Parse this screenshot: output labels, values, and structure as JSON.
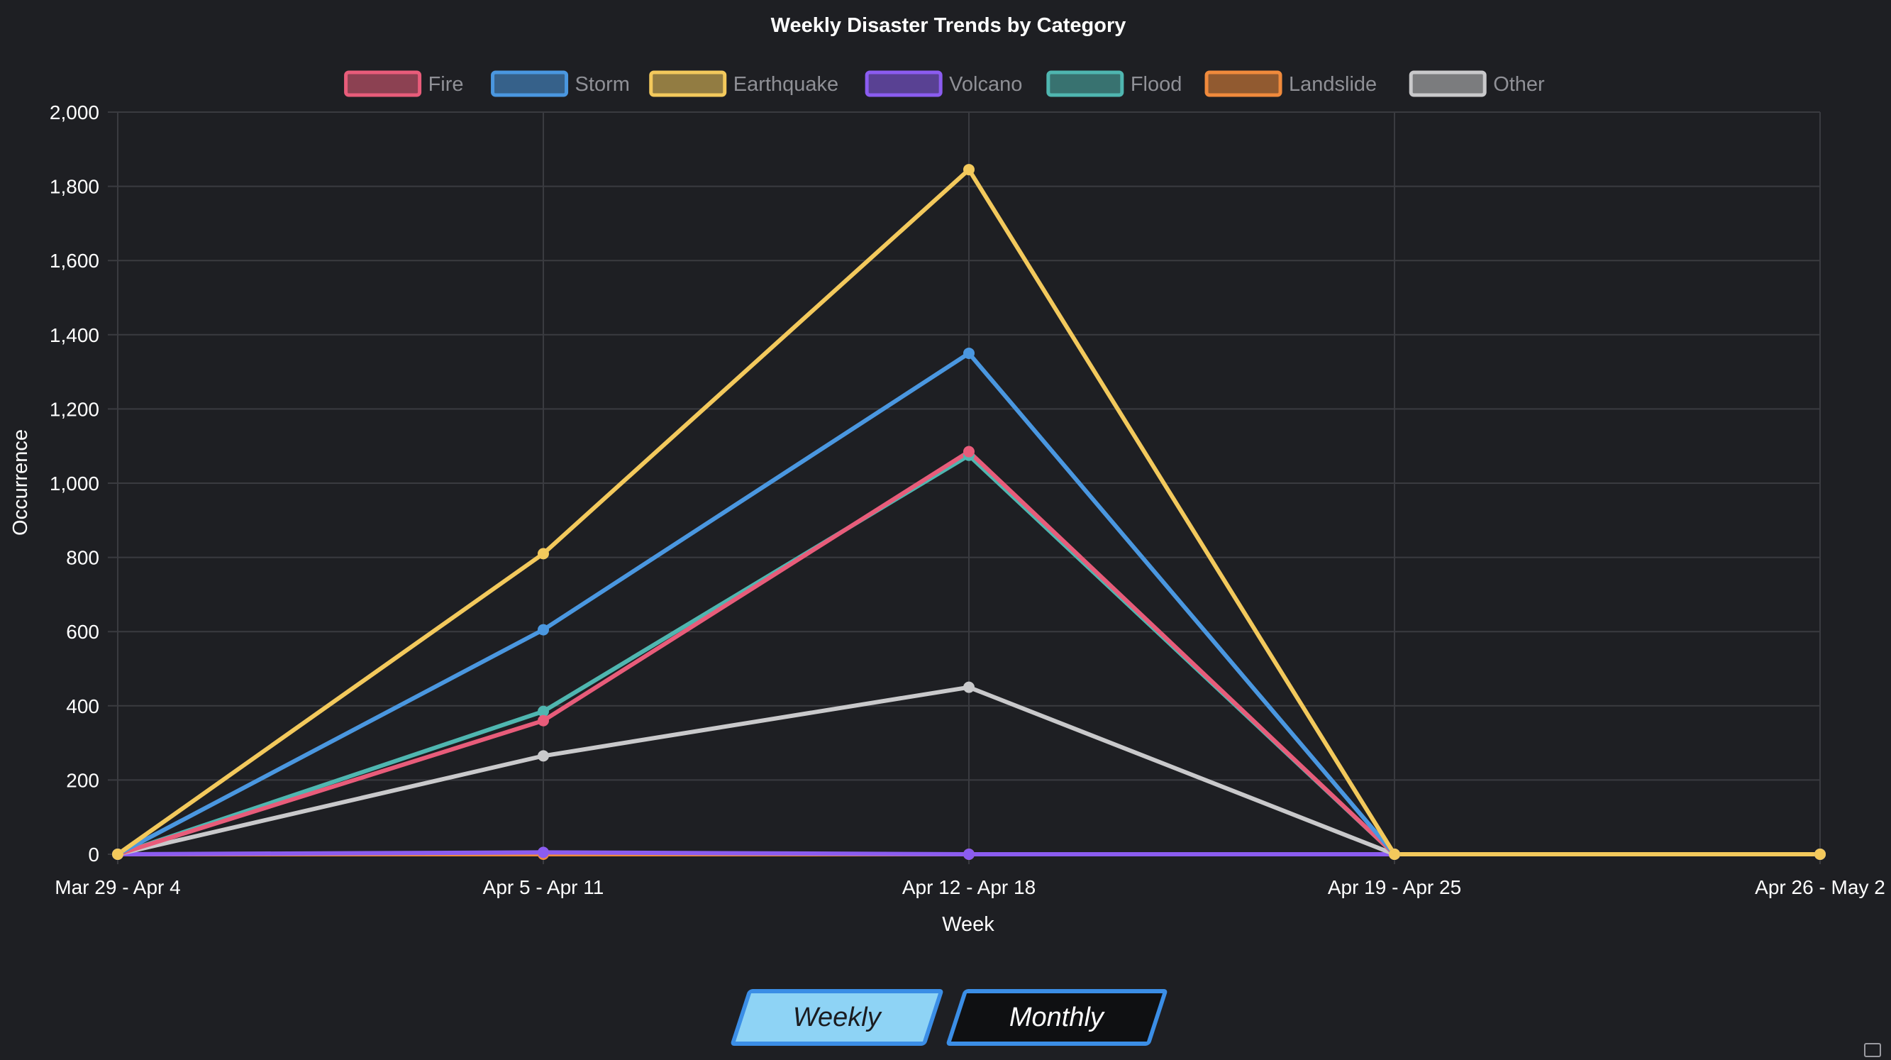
{
  "chart_data": {
    "type": "line",
    "title": "Weekly Disaster Trends by Category",
    "xlabel": "Week",
    "ylabel": "Occurrence",
    "categories": [
      "Mar 29 - Apr 4",
      "Apr 5 - Apr 11",
      "Apr 12 - Apr 18",
      "Apr 19 - Apr 25",
      "Apr 26 - May 2"
    ],
    "ylim": [
      0,
      2000
    ],
    "yticks": [
      0,
      200,
      400,
      600,
      800,
      1000,
      1200,
      1400,
      1600,
      1800,
      2000
    ],
    "ytick_labels": [
      "0",
      "200",
      "400",
      "600",
      "800",
      "1,000",
      "1,200",
      "1,400",
      "1,600",
      "1,800",
      "2,000"
    ],
    "grid": true,
    "legend_position": "top-center",
    "series": [
      {
        "name": "Fire",
        "color": "#e85c7a",
        "values": [
          0,
          360,
          1085,
          0,
          0
        ]
      },
      {
        "name": "Storm",
        "color": "#4a97e0",
        "values": [
          0,
          605,
          1350,
          0,
          0
        ]
      },
      {
        "name": "Earthquake",
        "color": "#f3c95c",
        "values": [
          0,
          810,
          1845,
          0,
          0
        ]
      },
      {
        "name": "Volcano",
        "color": "#8b5cf0",
        "values": [
          0,
          5,
          0,
          0,
          0
        ]
      },
      {
        "name": "Flood",
        "color": "#4fb6b0",
        "values": [
          0,
          385,
          1075,
          0,
          0
        ]
      },
      {
        "name": "Landslide",
        "color": "#f08a3c",
        "values": [
          0,
          0,
          0,
          0,
          0
        ]
      },
      {
        "name": "Other",
        "color": "#c9c9cb",
        "values": [
          0,
          265,
          450,
          0,
          0
        ]
      }
    ],
    "draw_order": [
      "Landslide",
      "Volcano",
      "Other",
      "Flood",
      "Fire",
      "Storm",
      "Earthquake"
    ]
  },
  "controls": {
    "weekly_label": "Weekly",
    "monthly_label": "Monthly",
    "active": "Weekly"
  }
}
